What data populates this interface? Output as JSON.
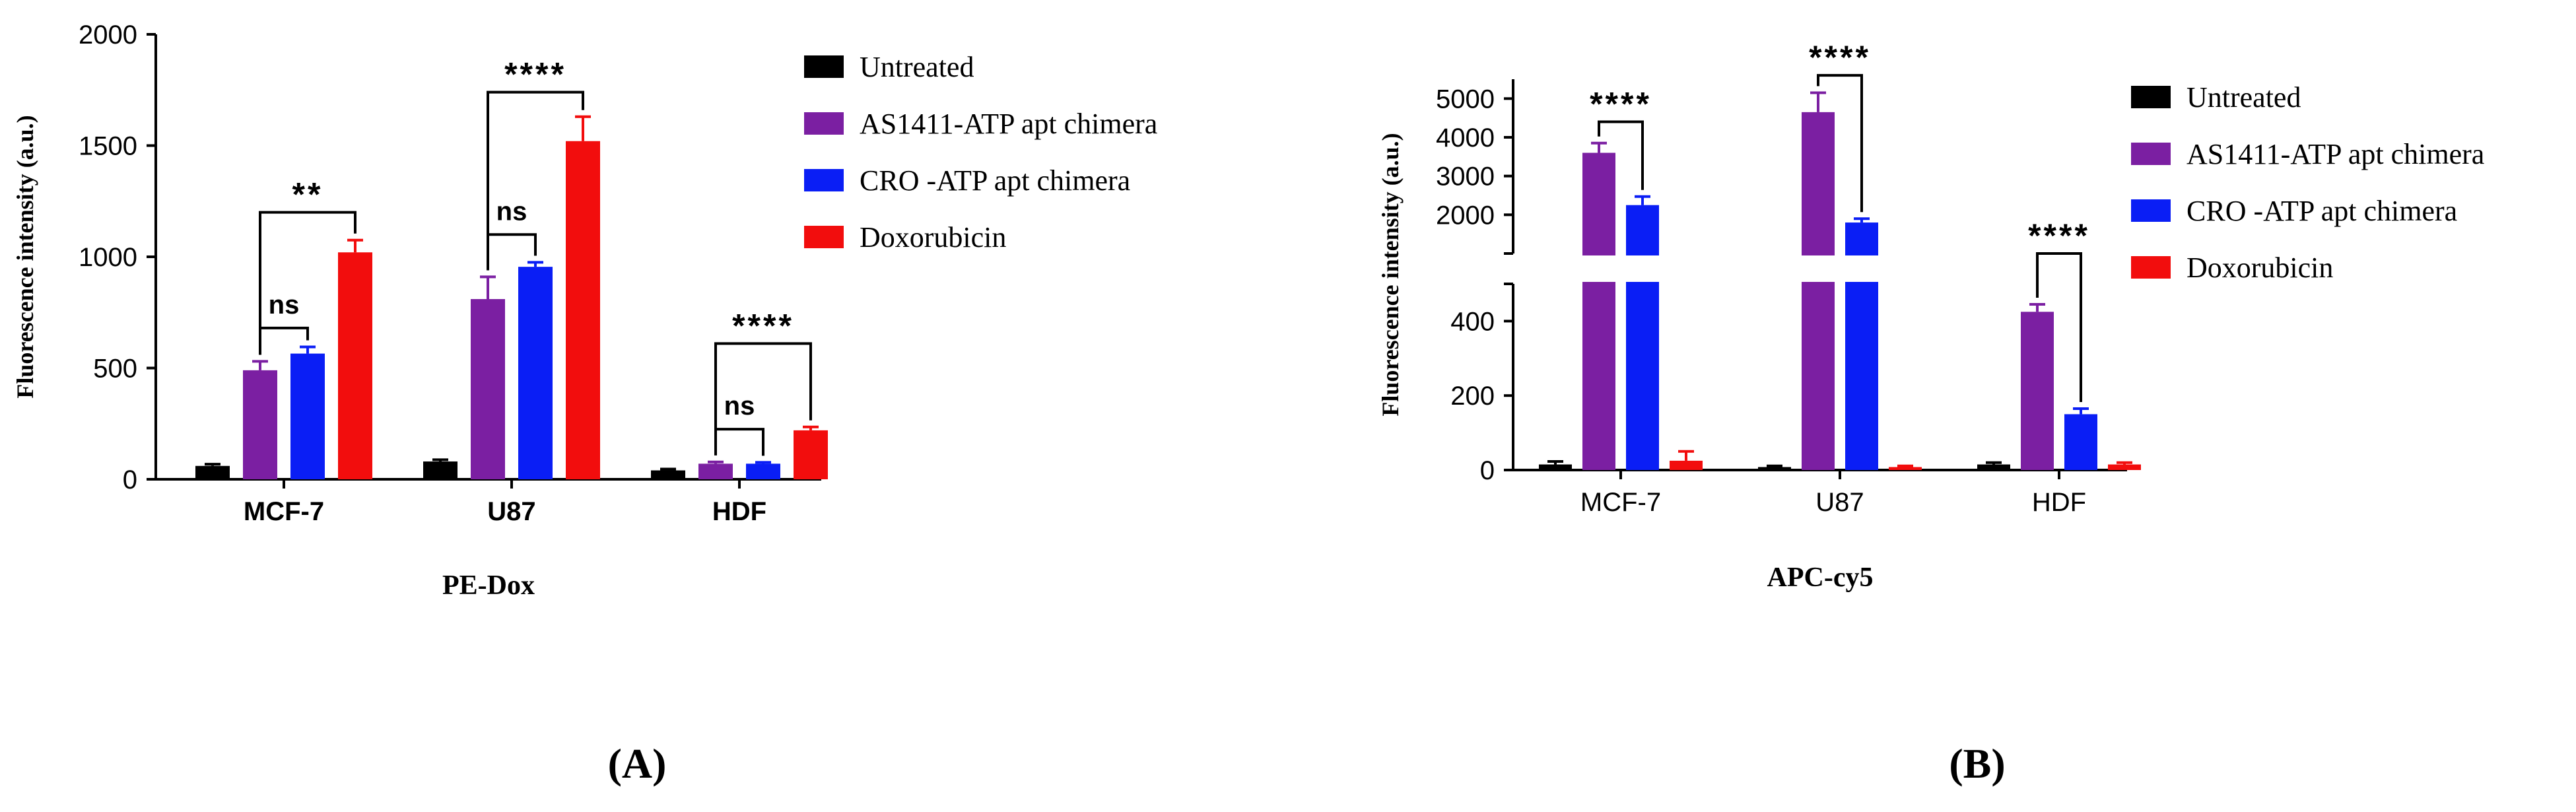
{
  "colors": {
    "Untreated": "#000000",
    "AS1411-ATP apt chimera": "#7b1fa2",
    "CRO -ATP apt chimera": "#0a1ef5",
    "Doxorubicin": "#f20d0d"
  },
  "chart_data": [
    {
      "type": "bar",
      "panel_label": "(A)",
      "ylabel": "Fluorescence intensity (a.u.)",
      "xlabel": "PE-Dox",
      "categories": [
        "MCF-7",
        "U87",
        "HDF"
      ],
      "ylim": [
        0,
        2000
      ],
      "yticks": [
        "0",
        "500",
        "1000",
        "1500",
        "2000"
      ],
      "series": [
        {
          "name": "Untreated",
          "values": [
            60,
            80,
            40
          ],
          "errors": [
            8,
            8,
            6
          ]
        },
        {
          "name": "AS1411-ATP apt chimera",
          "values": [
            490,
            810,
            70
          ],
          "errors": [
            40,
            100,
            8
          ]
        },
        {
          "name": "CRO -ATP apt chimera",
          "values": [
            565,
            955,
            70
          ],
          "errors": [
            30,
            20,
            6
          ]
        },
        {
          "name": "Doxorubicin",
          "values": [
            1020,
            1520,
            220
          ],
          "errors": [
            55,
            110,
            15
          ]
        }
      ],
      "annotations": [
        {
          "label": "ns",
          "category": "MCF-7",
          "between": [
            "AS1411-ATP apt chimera",
            "CRO -ATP apt chimera"
          ],
          "level": 680
        },
        {
          "label": "**",
          "category": "MCF-7",
          "between": [
            "AS1411-ATP apt chimera",
            "Doxorubicin"
          ],
          "level": 1200
        },
        {
          "label": "ns",
          "category": "U87",
          "between": [
            "AS1411-ATP apt chimera",
            "CRO -ATP apt chimera"
          ],
          "level": 1100
        },
        {
          "label": "****",
          "category": "U87",
          "between": [
            "AS1411-ATP apt chimera",
            "Doxorubicin"
          ],
          "level": 1740
        },
        {
          "label": "ns",
          "category": "HDF",
          "between": [
            "AS1411-ATP apt chimera",
            "CRO -ATP apt chimera"
          ],
          "level": 225
        },
        {
          "label": "****",
          "category": "HDF",
          "between": [
            "AS1411-ATP apt chimera",
            "Doxorubicin"
          ],
          "level": 610
        }
      ],
      "legend_placement": "right"
    },
    {
      "type": "bar",
      "panel_label": "(B)",
      "ylabel": "Fluorescence intensity (a.u.)",
      "xlabel": "APC-cy5",
      "categories": [
        "MCF-7",
        "U87",
        "HDF"
      ],
      "broken_axis": {
        "lower": [
          0,
          500
        ],
        "upper": [
          1000,
          5500
        ]
      },
      "yticks_lower": [
        "0",
        "200",
        "400"
      ],
      "yticks_upper": [
        "2000",
        "3000",
        "4000",
        "5000"
      ],
      "series": [
        {
          "name": "Untreated",
          "values": [
            15,
            8,
            15
          ],
          "errors": [
            8,
            3,
            5
          ]
        },
        {
          "name": "AS1411-ATP apt chimera",
          "values": [
            3600,
            4650,
            425
          ],
          "errors": [
            250,
            500,
            20
          ]
        },
        {
          "name": "CRO -ATP apt chimera",
          "values": [
            2250,
            1800,
            150
          ],
          "errors": [
            220,
            100,
            15
          ]
        },
        {
          "name": "Doxorubicin",
          "values": [
            25,
            8,
            15
          ],
          "errors": [
            25,
            3,
            5
          ]
        }
      ],
      "annotations": [
        {
          "label": "****",
          "category": "MCF-7",
          "between": [
            "AS1411-ATP apt chimera",
            "CRO -ATP apt chimera"
          ],
          "level": 4400
        },
        {
          "label": "****",
          "category": "U87",
          "between": [
            "AS1411-ATP apt chimera",
            "CRO -ATP apt chimera"
          ],
          "level": 5600
        },
        {
          "label": "****",
          "category": "HDF",
          "between": [
            "AS1411-ATP apt chimera",
            "CRO -ATP apt chimera"
          ],
          "level": 515
        }
      ],
      "legend_placement": "right"
    }
  ]
}
